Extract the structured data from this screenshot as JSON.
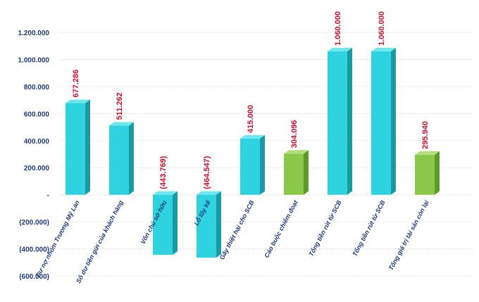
{
  "chart_data": {
    "type": "bar",
    "title": "",
    "xlabel": "",
    "ylabel": "",
    "ylim": [
      -600000,
      1200000
    ],
    "y_ticks": [
      1200000,
      1000000,
      800000,
      600000,
      400000,
      200000,
      0,
      -200000,
      -400000,
      -600000
    ],
    "y_tick_labels": [
      "1.200.000",
      "1.000.000",
      "800.000",
      "600.000",
      "400.000",
      "200.000",
      "-",
      "(200.000)",
      "(400.000)",
      "(600.000)"
    ],
    "grid": true,
    "bar_style": "3d",
    "categories": [
      "Dư nợ nhóm Trương Mỹ Lan",
      "Số dư tiền gửi của khách hàng",
      "Vốn chủ sở hữu",
      "Lỗ lũy kế",
      "Gây thiệt hại cho SCB",
      "Cáo buộc chiếm đoạt",
      "Tổng tiền rút từ SCB",
      "Tổng tiền rút từ SCB",
      "Tổng giá trị tài sản còn lại"
    ],
    "values": [
      677286,
      511262,
      -443769,
      -464547,
      415000,
      304096,
      1060000,
      1060000,
      295940
    ],
    "data_labels": [
      "677.286",
      "511.262",
      "(443.769)",
      "(464.547)",
      "415.000",
      "304.096",
      "1.060.000",
      "1.060.000",
      "295.940"
    ],
    "bar_colors": [
      "#2ed3df",
      "#2ed3df",
      "#2ed3df",
      "#2ed3df",
      "#2ed3df",
      "#8bc84a",
      "#2ed3df",
      "#2ed3df",
      "#8bc84a"
    ],
    "colors": {
      "cyan_front": "#2ed3df",
      "cyan_side": "#1c9aa4",
      "cyan_top": "#6fe6ee",
      "green_front": "#8bc84a",
      "green_side": "#5e9a2a",
      "green_top": "#b1df7e",
      "data_label": "#c8102e",
      "axis_text": "#1f3a7a",
      "category_text": "#1f3a7a",
      "gridline": "#d9d9d9"
    }
  }
}
